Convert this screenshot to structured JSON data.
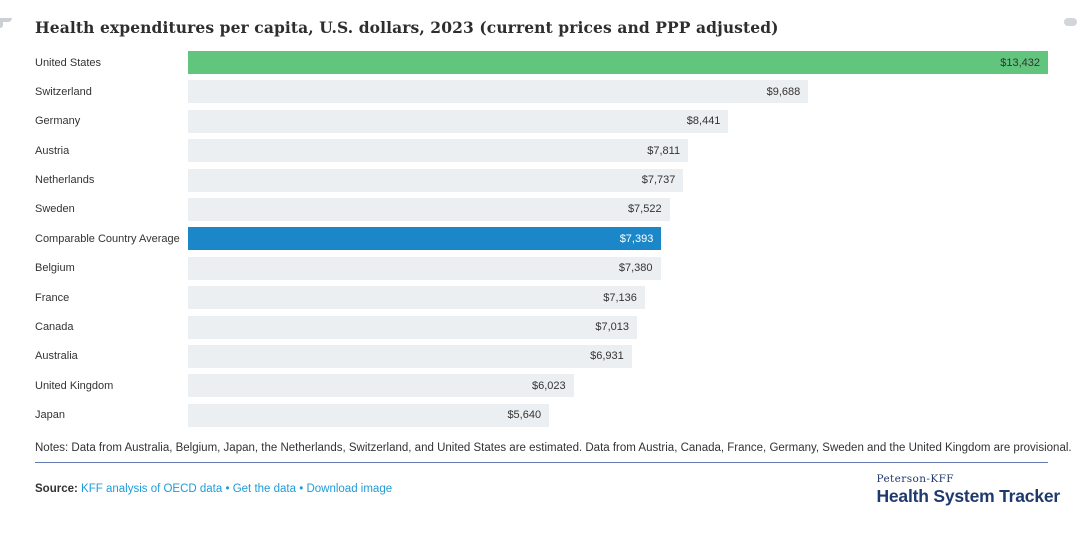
{
  "title": "Health expenditures per capita, U.S. dollars, 2023 (current prices and PPP adjusted)",
  "chart_data": {
    "type": "bar",
    "orientation": "horizontal",
    "title": "Health expenditures per capita, U.S. dollars, 2023 (current prices and PPP adjusted)",
    "categories": [
      "United States",
      "Switzerland",
      "Germany",
      "Austria",
      "Netherlands",
      "Sweden",
      "Comparable Country Average",
      "Belgium",
      "France",
      "Canada",
      "Australia",
      "United Kingdom",
      "Japan"
    ],
    "values": [
      13432,
      9688,
      8441,
      7811,
      7737,
      7522,
      7393,
      7380,
      7136,
      7013,
      6931,
      6023,
      5640
    ],
    "value_labels": [
      "$13,432",
      "$9,688",
      "$8,441",
      "$7,811",
      "$7,737",
      "$7,522",
      "$7,393",
      "$7,380",
      "$7,136",
      "$7,013",
      "$6,931",
      "$6,023",
      "$5,640"
    ],
    "bar_colors": [
      "#62c57e",
      "#eceff1",
      "#eceff1",
      "#eceff1",
      "#eceff1",
      "#eceff1",
      "#1b87c9",
      "#eceff1",
      "#eceff1",
      "#eceff1",
      "#eceff1",
      "#eceff1",
      "#eceff1"
    ],
    "value_text_colors": [
      "#333333",
      "#333333",
      "#333333",
      "#333333",
      "#333333",
      "#333333",
      "#ffffff",
      "#333333",
      "#333333",
      "#333333",
      "#333333",
      "#333333",
      "#333333"
    ],
    "xlim": [
      0,
      13432
    ],
    "grid": false,
    "legend": false
  },
  "notes": "Notes: Data from Australia, Belgium, Japan, the Netherlands, Switzerland, and United States are estimated. Data from Austria, Canada, France, Germany, Sweden and the United Kingdom are provisional.",
  "source": {
    "prefix": "Source:",
    "links": [
      "KFF analysis of OECD data",
      "Get the data",
      "Download image"
    ],
    "separator": "•"
  },
  "logo": {
    "top": "Peterson-KFF",
    "bottom": "Health System Tracker"
  },
  "colors": {
    "highlight_green": "#62c57e",
    "highlight_blue": "#1b87c9",
    "bar_gray": "#eceff1",
    "link_blue": "#1e9cd9",
    "navy": "#1e3a6d",
    "divider_blue": "#6479ad",
    "text": "#333333"
  }
}
